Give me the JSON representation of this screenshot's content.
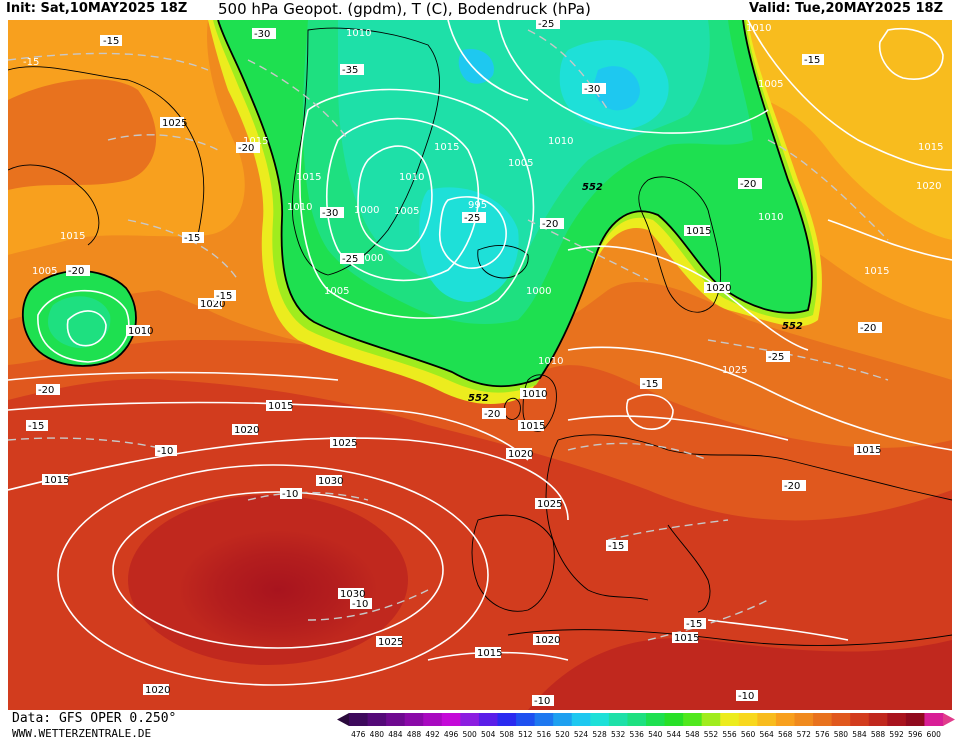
{
  "header": {
    "init": "Init: Sat,10MAY2025 18Z",
    "title": "500 hPa Geopot. (gpdm), T (C), Bodendruck (hPa)",
    "valid": "Valid: Tue,20MAY2025 18Z"
  },
  "footer": {
    "data_source": "Data: GFS OPER 0.250°",
    "website": "WWW.WETTERZENTRALE.DE"
  },
  "legend": {
    "values": [
      "476",
      "480",
      "484",
      "488",
      "492",
      "496",
      "500",
      "504",
      "508",
      "512",
      "516",
      "520",
      "524",
      "528",
      "532",
      "536",
      "540",
      "544",
      "548",
      "552",
      "556",
      "560",
      "564",
      "568",
      "572",
      "576",
      "580",
      "584",
      "588",
      "592",
      "596",
      "600"
    ],
    "colors": [
      "#3d0a5c",
      "#540a78",
      "#6e0a90",
      "#8a0aa8",
      "#a80ac0",
      "#c40ad8",
      "#8c1ee0",
      "#5a1ee8",
      "#2a2af0",
      "#1e50f0",
      "#1e78f0",
      "#1ea0f0",
      "#1ec8f0",
      "#1ee0d8",
      "#1ee0a8",
      "#1ee080",
      "#1ee050",
      "#28e028",
      "#50e81e",
      "#a0ec1e",
      "#ecec1e",
      "#f8d81e",
      "#f8bc1e",
      "#f8a01e",
      "#f08a1e",
      "#e8721e",
      "#e0581e",
      "#d23c1e",
      "#c0281e",
      "#a8141e",
      "#900a1e",
      "#d81e96"
    ],
    "start_arrow_color": "#2a0a3c",
    "end_arrow_color": "#e03c8c"
  },
  "map": {
    "pressure_labels": [
      "1020",
      "1010",
      "1005",
      "1025",
      "1015",
      "1015",
      "1010",
      "1015",
      "1010",
      "1005",
      "1000",
      "1000",
      "995",
      "1000",
      "1005",
      "1010",
      "1015",
      "1015",
      "1020",
      "1010",
      "1005",
      "1015",
      "1010",
      "1015",
      "1020",
      "1005",
      "1010",
      "1015",
      "1020",
      "1020",
      "1025",
      "1015",
      "1015",
      "1025",
      "1030",
      "1030",
      "1025",
      "1015",
      "1020",
      "1015",
      "1025",
      "1010",
      "1020",
      "1015",
      "1010"
    ],
    "temp_labels": [
      "-15",
      "-15",
      "-30",
      "-35",
      "-25",
      "-30",
      "-20",
      "-20",
      "-15",
      "-15",
      "-30",
      "-25",
      "-25",
      "-20",
      "-20",
      "-20",
      "-15",
      "-15",
      "-10",
      "-10",
      "-10",
      "-15",
      "-15",
      "-10",
      "-10",
      "-20",
      "-20",
      "-25",
      "-20",
      "-15"
    ],
    "geopotential_labels": [
      "552",
      "552",
      "552"
    ],
    "colors": {
      "ocean_border": "#9a9a9a",
      "coastline": "#000000",
      "isobar": "#ffffff",
      "isotherm": "#c8c8c8",
      "contour_552": "#000000"
    }
  }
}
